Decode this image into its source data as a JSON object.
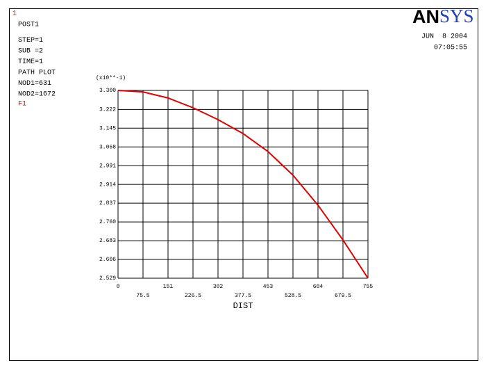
{
  "chart_data": {
    "type": "line",
    "plot_number": "1",
    "info": [
      "POST1",
      "STEP=1",
      "SUB =2",
      "TIME=1",
      "PATH PLOT",
      "NOD1=631",
      "NOD2=1672"
    ],
    "logo": "ANSYS",
    "date": "JUN  8 2004",
    "time": "07:05:55",
    "y_multiplier": "(x10**-1)",
    "xlabel": "DIST",
    "x": [
      0,
      75.5,
      151,
      226.5,
      302,
      377.5,
      453,
      528.5,
      604,
      679.5,
      755
    ],
    "series": [
      {
        "name": "F1",
        "color": "#e00000",
        "values": [
          3.3,
          3.294,
          3.269,
          3.229,
          3.18,
          3.123,
          3.049,
          2.952,
          2.829,
          2.686,
          2.529
        ]
      }
    ],
    "xlim": [
      0,
      755
    ],
    "xticks": [
      0,
      75.5,
      151,
      226.5,
      302,
      377.5,
      453,
      528.5,
      604,
      679.5,
      755
    ],
    "ylim": [
      2.529,
      3.3
    ],
    "yticks": [
      2.529,
      2.606,
      2.683,
      {
        "value": 2.76,
        "label": "2.760"
      },
      2.837,
      2.914,
      2.991,
      3.068,
      3.145,
      3.222,
      {
        "value": 3.3,
        "label": "3.300"
      }
    ],
    "grid": true
  }
}
